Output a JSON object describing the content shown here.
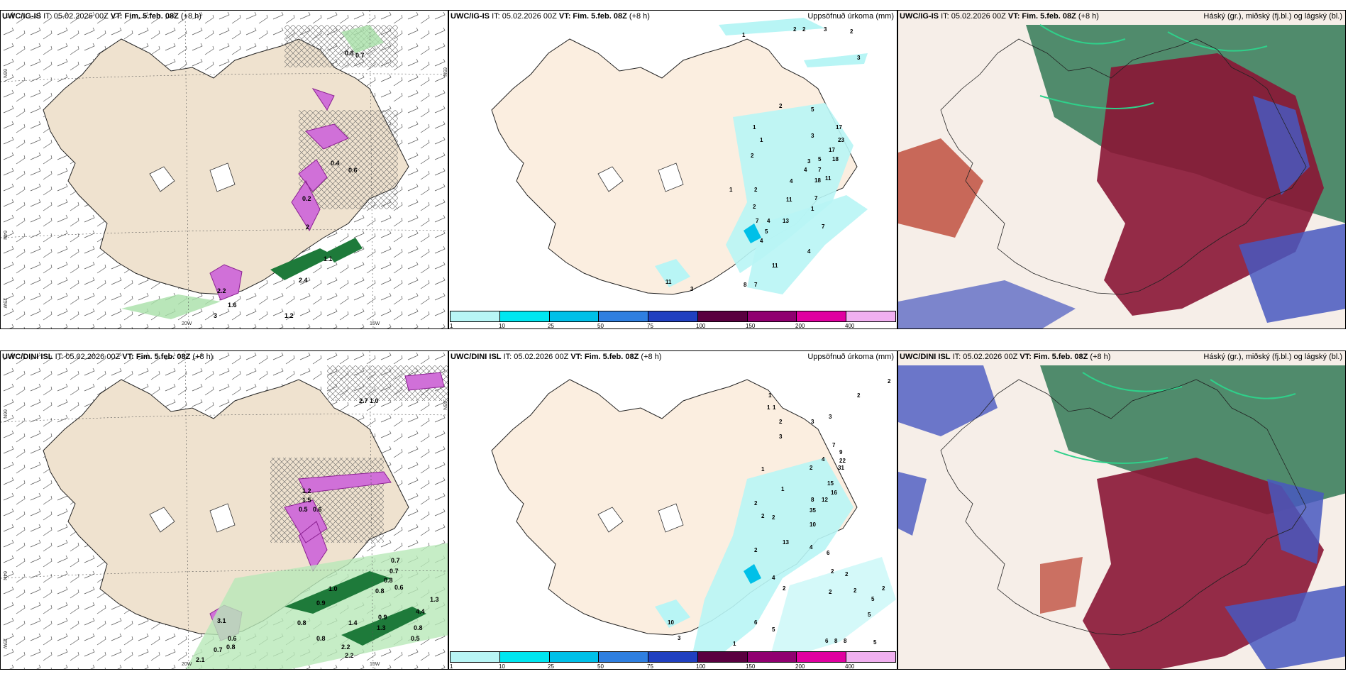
{
  "panels": {
    "p1": {
      "model": "UWC/IG-IS",
      "it": "IT: 05.02.2026 00Z",
      "vt_label": "VT:",
      "vt": "Fim. 5.feb. 08Z",
      "lead": "(+8 h)"
    },
    "p2": {
      "model": "UWC/IG-IS",
      "it": "IT: 05.02.2026 00Z",
      "vt_label": "VT:",
      "vt": "Fim. 5.feb. 08Z",
      "lead": "(+8 h)",
      "right": "Uppsöfnuð úrkoma (mm)"
    },
    "p3": {
      "model": "UWC/IG-IS",
      "it": "IT: 05.02.2026 00Z",
      "vt_label": "VT:",
      "vt": "Fim. 5.feb. 08Z",
      "lead": "(+8 h)",
      "right": "Háský (gr.), miðský (fj.bl.) og lágský (bl.)"
    },
    "p4": {
      "model": "UWC/DINI ISL",
      "it": "IT: 05.02.2026 00Z",
      "vt_label": "VT:",
      "vt": "Fim. 5.feb. 08Z",
      "lead": "(+8 h)"
    },
    "p5": {
      "model": "UWC/DINI ISL",
      "it": "IT: 05.02.2026 00Z",
      "vt_label": "VT:",
      "vt": "Fim. 5.feb. 08Z",
      "lead": "(+8 h)",
      "right": "Uppsöfnuð úrkoma (mm)"
    },
    "p6": {
      "model": "UWC/DINI ISL",
      "it": "IT: 05.02.2026 00Z",
      "vt_label": "VT:",
      "vt": "Fim. 5.feb. 08Z",
      "lead": "(+8 h)",
      "right": "Háský (gr.), miðský (fj.bl.) og lágský (bl.)"
    }
  },
  "axis_labels": {
    "lat66": "66N",
    "lat64": "64N",
    "lon20": "20W",
    "lon15": "15W",
    "lon25": "25W",
    "lat65": "65N"
  },
  "precip_scale": {
    "ticks": [
      "1",
      "10",
      "25",
      "50",
      "75",
      "100",
      "150",
      "200",
      "400"
    ],
    "colors": [
      "#b8f5f5",
      "#00e6f0",
      "#00c0e8",
      "#2f7fe0",
      "#2040c0",
      "#5a0040",
      "#900070",
      "#e000a0",
      "#f0b0f0"
    ]
  },
  "p1_labels": [
    "0.8",
    "0.7",
    "0.4",
    "0.6",
    "0.2",
    "2",
    "1.1",
    "2.2",
    "2.4",
    "1.2",
    "3",
    "1.6"
  ],
  "p2_labels": [
    "1",
    "2",
    "2",
    "3",
    "2",
    "3",
    "2",
    "5",
    "3",
    "17",
    "23",
    "17",
    "18",
    "5",
    "1",
    "2",
    "3",
    "4",
    "7",
    "18",
    "11",
    "4",
    "7",
    "2",
    "11",
    "2",
    "1",
    "7",
    "4",
    "5",
    "4",
    "7",
    "13",
    "11",
    "8",
    "7",
    "11",
    "3",
    "1",
    "1",
    "4"
  ],
  "p4_labels": [
    "2.7",
    "1.0",
    "1.2",
    "1.5",
    "0.5",
    "0.6",
    "0.7",
    "0.7",
    "0.8",
    "0.8",
    "0.6",
    "1.0",
    "0.9",
    "0.8",
    "1.4",
    "1.3",
    "0.9",
    "0.5",
    "0.8",
    "0.8",
    "2.2",
    "2.2",
    "2.1",
    "0.7",
    "0.8",
    "0.6",
    "3.1",
    "4.4",
    "1.3"
  ],
  "p5_labels": [
    "2",
    "2",
    "1",
    "1",
    "1",
    "2",
    "3",
    "3",
    "3",
    "9",
    "22",
    "31",
    "1",
    "2",
    "4",
    "7",
    "15",
    "16",
    "1",
    "2",
    "8",
    "12",
    "2",
    "2",
    "35",
    "10",
    "2",
    "13",
    "4",
    "6",
    "2",
    "2",
    "4",
    "2",
    "2",
    "2",
    "5",
    "5",
    "6",
    "5",
    "2",
    "10",
    "3",
    "6",
    "8",
    "8",
    "5",
    "1"
  ]
}
